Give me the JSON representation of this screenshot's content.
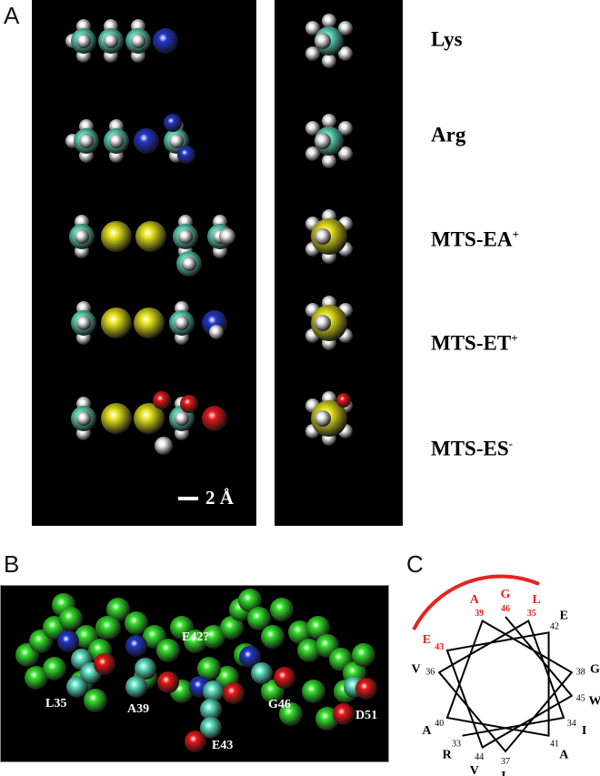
{
  "panel_labels": {
    "a": "A",
    "b": "B",
    "c": "C"
  },
  "panel_a": {
    "molecules": [
      {
        "name": "Lys",
        "charge": ""
      },
      {
        "name": "Arg",
        "charge": ""
      },
      {
        "name": "MTS-EA",
        "charge": "+"
      },
      {
        "name": "MTS-ET",
        "charge": "+"
      },
      {
        "name": "MTS-ES",
        "charge": "-"
      }
    ],
    "scale_bar": "2 Å"
  },
  "panel_b": {
    "residue_labels": [
      "L35",
      "A39",
      "E42?",
      "E43",
      "G46",
      "D51"
    ]
  },
  "panel_c": {
    "residues": [
      {
        "num": "33",
        "aa": "R",
        "highlight": false
      },
      {
        "num": "34",
        "aa": "I",
        "highlight": false
      },
      {
        "num": "35",
        "aa": "L",
        "highlight": true
      },
      {
        "num": "36",
        "aa": "V",
        "highlight": false
      },
      {
        "num": "37",
        "aa": "L",
        "highlight": false
      },
      {
        "num": "38",
        "aa": "G",
        "highlight": false
      },
      {
        "num": "39",
        "aa": "A",
        "highlight": true
      },
      {
        "num": "40",
        "aa": "A",
        "highlight": false
      },
      {
        "num": "41",
        "aa": "A",
        "highlight": false
      },
      {
        "num": "42",
        "aa": "E",
        "highlight": false
      },
      {
        "num": "43",
        "aa": "E",
        "highlight": true
      },
      {
        "num": "44",
        "aa": "V",
        "highlight": false
      },
      {
        "num": "45",
        "aa": "W",
        "highlight": false
      },
      {
        "num": "46",
        "aa": "G",
        "highlight": true
      }
    ],
    "highlight_color": "#e8231f"
  },
  "atom_colors": {
    "C": "#5fe3c2",
    "H": "#f2f2f2",
    "N": "#2236c8",
    "S": "#e6e31c",
    "O": "#e81818",
    "helix": "#35e02c"
  }
}
